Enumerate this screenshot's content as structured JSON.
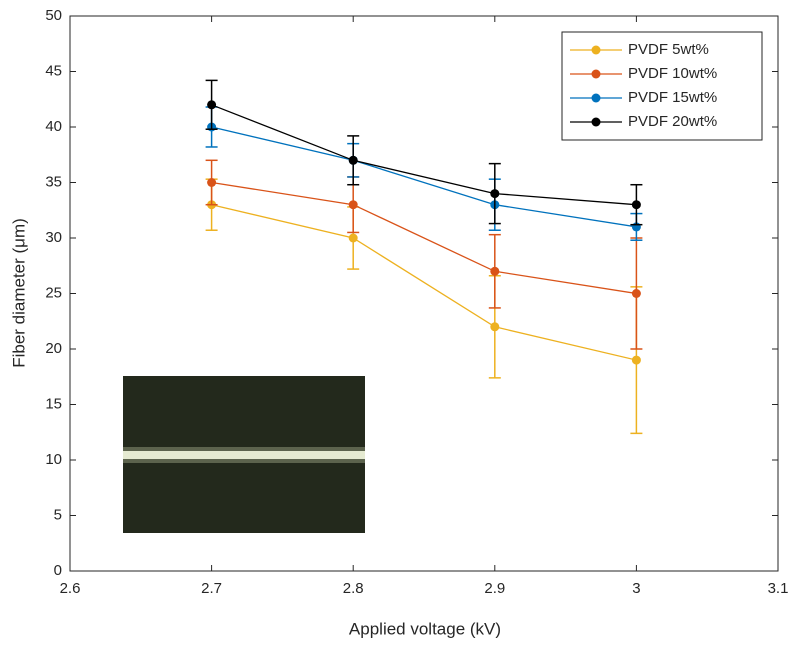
{
  "chart_data": {
    "type": "line",
    "x_label": "Applied voltage (kV)",
    "y_label": "Fiber diameter (μm)",
    "x": [
      2.7,
      2.8,
      2.9,
      3.0
    ],
    "series": [
      {
        "name": "PVDF 5wt%",
        "color": "#edb120",
        "values": [
          33,
          30,
          22,
          19
        ],
        "errors": [
          2.3,
          2.8,
          4.6,
          6.6
        ]
      },
      {
        "name": "PVDF 10wt%",
        "color": "#d95319",
        "values": [
          35,
          33,
          27,
          25
        ],
        "errors": [
          2,
          2.5,
          3.3,
          5
        ]
      },
      {
        "name": "PVDF 15wt%",
        "color": "#0072bd",
        "values": [
          40,
          37,
          33,
          31
        ],
        "errors": [
          1.8,
          1.5,
          2.3,
          1.2
        ]
      },
      {
        "name": "PVDF 20wt%",
        "color": "#000000",
        "values": [
          42,
          37,
          34,
          33
        ],
        "errors": [
          2.2,
          2.2,
          2.7,
          1.8
        ]
      }
    ],
    "xlim": [
      2.6,
      3.1
    ],
    "xticks": [
      2.6,
      2.7,
      2.8,
      2.9,
      3,
      3.1
    ],
    "ylim": [
      0,
      50
    ],
    "yticks": [
      0,
      5,
      10,
      15,
      20,
      25,
      30,
      35,
      40,
      45,
      50
    ],
    "legend": "upper right"
  }
}
